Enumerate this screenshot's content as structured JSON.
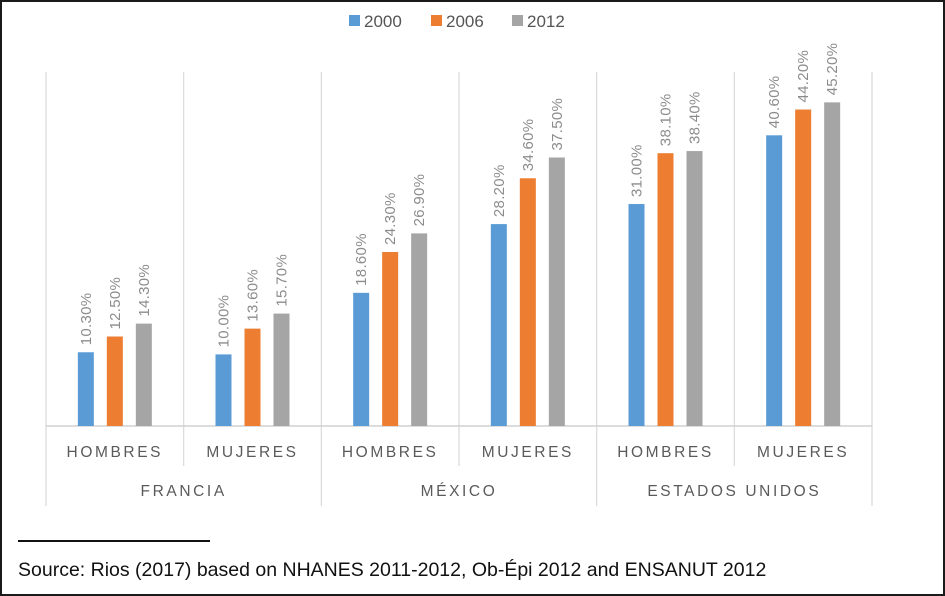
{
  "chart_data": {
    "type": "bar",
    "series": [
      {
        "name": "2000",
        "color": "#5b9bd5",
        "values": [
          10.3,
          10.0,
          18.6,
          28.2,
          31.0,
          40.6
        ]
      },
      {
        "name": "2006",
        "color": "#ed7d31",
        "values": [
          12.5,
          13.6,
          24.3,
          34.6,
          38.1,
          44.2
        ]
      },
      {
        "name": "2012",
        "color": "#a5a5a5",
        "values": [
          14.3,
          15.7,
          26.9,
          37.5,
          38.4,
          45.2
        ]
      }
    ],
    "categories": [
      "HOMBRES",
      "MUJERES",
      "HOMBRES",
      "MUJERES",
      "HOMBRES",
      "MUJERES"
    ],
    "groups": [
      {
        "label": "FRANCIA",
        "span": 2
      },
      {
        "label": "MÉXICO",
        "span": 2
      },
      {
        "label": "ESTADOS UNIDOS",
        "span": 2
      }
    ],
    "data_labels": [
      [
        "10.30%",
        "10.00%",
        "18.60%",
        "28.20%",
        "31.00%",
        "40.60%"
      ],
      [
        "12.50%",
        "13.60%",
        "24.30%",
        "34.60%",
        "38.10%",
        "44.20%"
      ],
      [
        "14.30%",
        "15.70%",
        "26.90%",
        "37.50%",
        "38.40%",
        "45.20%"
      ]
    ],
    "ylim": [
      0,
      50
    ],
    "grid": false,
    "legend": "top-center"
  },
  "source_note": "Source: Rios (2017) based on NHANES 2011-2012, Ob-Épi 2012 and ENSANUT 2012"
}
